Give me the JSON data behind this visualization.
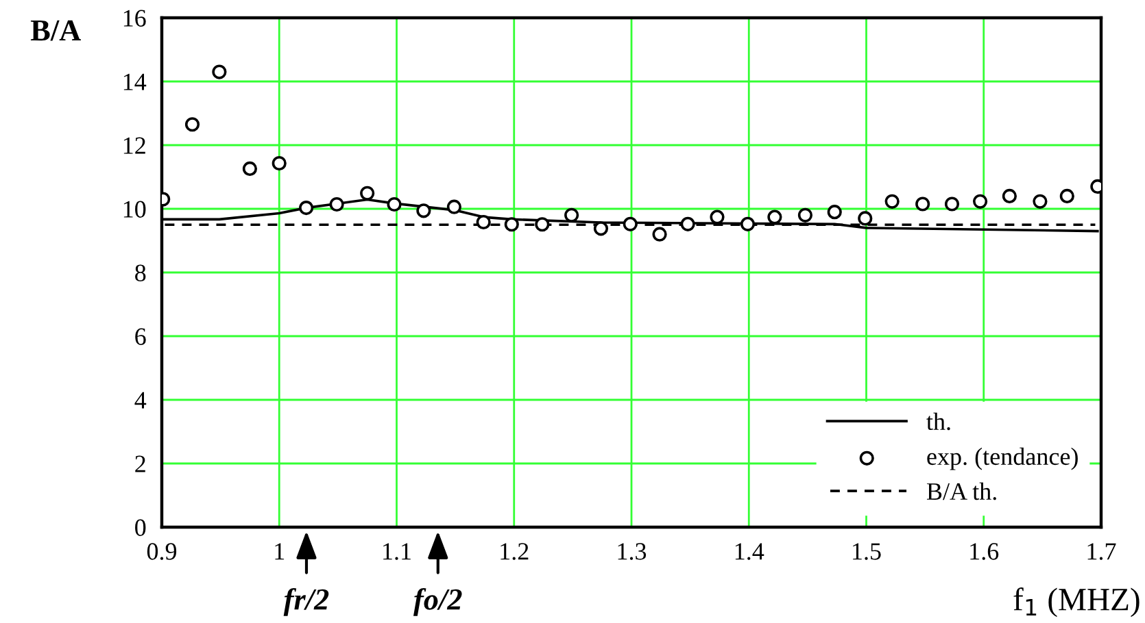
{
  "chart_data": {
    "type": "line",
    "ylabel": "B/A",
    "xlabel": "f$_{1}$ (MHZ)",
    "xlim": [
      0.9,
      1.7
    ],
    "xticks": [
      0.9,
      1,
      1.1,
      1.2,
      1.3,
      1.4,
      1.5,
      1.6,
      1.7
    ],
    "ylim": [
      0,
      16
    ],
    "yticks": [
      0,
      2,
      4,
      6,
      8,
      10,
      12,
      14,
      16
    ],
    "grid": true,
    "legend": "bottom right",
    "series": [
      {
        "name": "th.",
        "color": "#000000",
        "line_style": "solid",
        "marker": "none",
        "x": [
          0.9,
          0.949,
          1.0,
          1.023,
          1.075,
          1.098,
          1.149,
          1.174,
          1.198,
          1.274,
          1.473,
          1.5,
          1.697
        ],
        "values": [
          9.67,
          9.67,
          9.86,
          10.03,
          10.29,
          10.17,
          9.96,
          9.74,
          9.67,
          9.57,
          9.52,
          9.4,
          9.3
        ]
      },
      {
        "name": "exp. (tendance)",
        "type": "scatter",
        "color": "#000000",
        "marker": "circle",
        "x": [
          0.901,
          0.926,
          0.949,
          0.975,
          1.0,
          1.023,
          1.049,
          1.075,
          1.098,
          1.123,
          1.149,
          1.174,
          1.198,
          1.224,
          1.249,
          1.274,
          1.299,
          1.324,
          1.348,
          1.373,
          1.399,
          1.422,
          1.448,
          1.473,
          1.499,
          1.522,
          1.548,
          1.573,
          1.597,
          1.622,
          1.648,
          1.671,
          1.697
        ],
        "values": [
          10.3,
          12.65,
          14.3,
          11.26,
          11.43,
          10.03,
          10.14,
          10.49,
          10.14,
          9.94,
          10.06,
          9.58,
          9.51,
          9.51,
          9.8,
          9.38,
          9.52,
          9.2,
          9.52,
          9.74,
          9.52,
          9.74,
          9.8,
          9.9,
          9.7,
          10.23,
          10.15,
          10.15,
          10.23,
          10.4,
          10.23,
          10.4,
          10.7
        ]
      },
      {
        "name": "B/A th.",
        "color": "#000000",
        "line_style": "dashed",
        "marker": "none",
        "x": [
          0.9,
          1.695
        ],
        "values": [
          9.5,
          9.5
        ]
      }
    ],
    "annotations": [
      "fr/2",
      "fo/2"
    ]
  }
}
